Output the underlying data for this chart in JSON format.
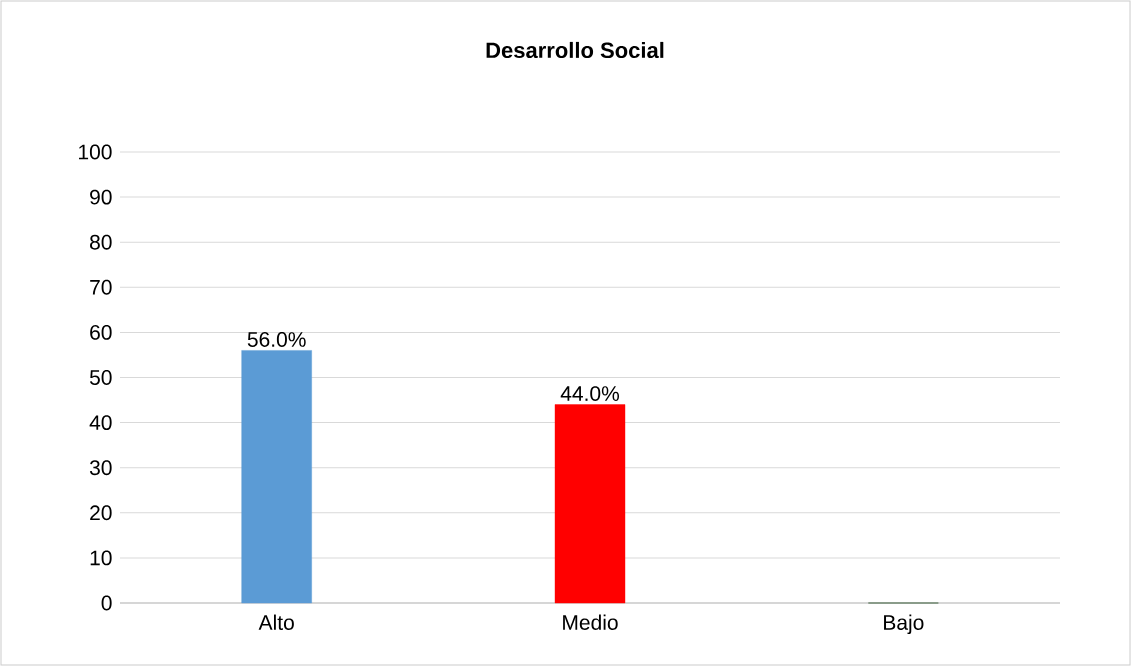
{
  "chart_data": {
    "type": "bar",
    "title": "Desarrollo Social",
    "categories": [
      "Alto",
      "Medio",
      "Bajo"
    ],
    "values": [
      56,
      44,
      0
    ],
    "colors": [
      "#5b9bd5",
      "#ff0000",
      "#003300"
    ],
    "value_labels": [
      "56.0%",
      "44.0%",
      null
    ],
    "ylim": [
      0,
      100
    ],
    "yticks": [
      0,
      10,
      20,
      30,
      40,
      50,
      60,
      70,
      80,
      90,
      100
    ],
    "grid": "y"
  }
}
